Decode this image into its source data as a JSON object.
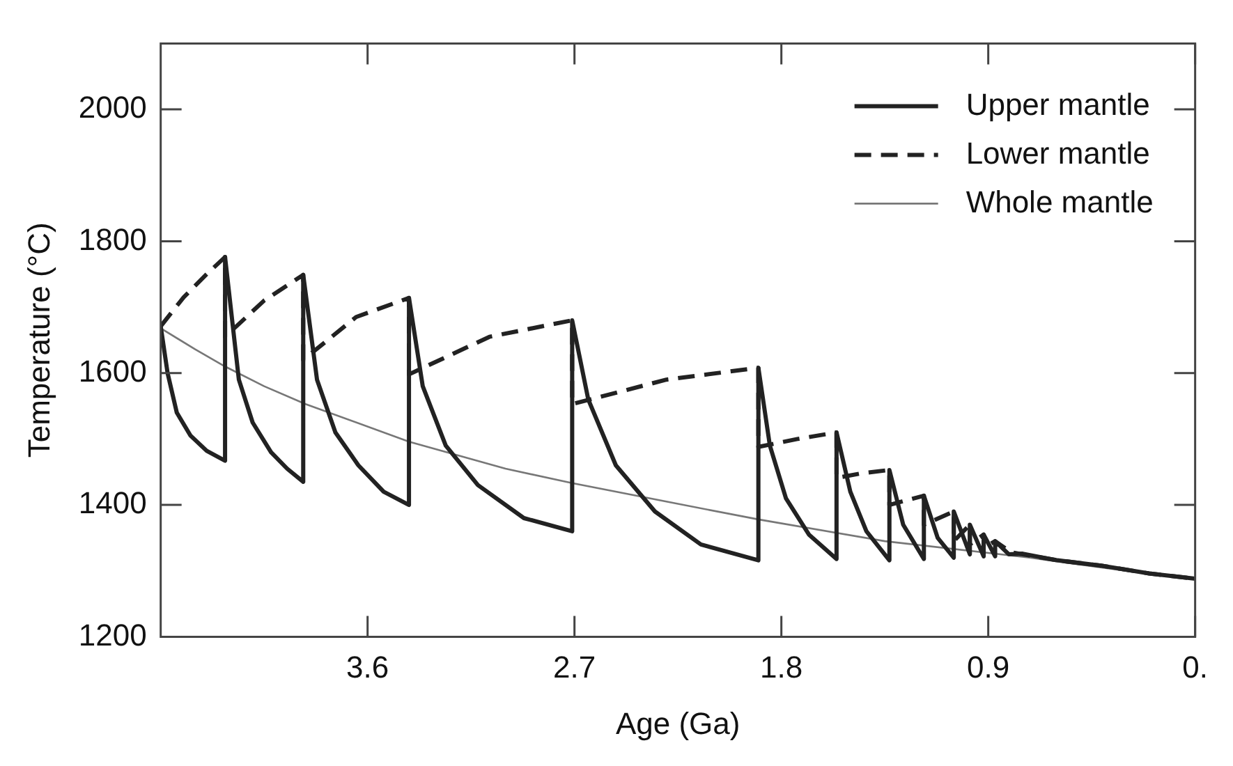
{
  "chart_data": {
    "type": "line",
    "xlabel": "Age (Ga)",
    "ylabel": "Temperature (°C)",
    "xlim": [
      4.5,
      0
    ],
    "ylim": [
      1200,
      2100
    ],
    "xticks": [
      3.6,
      2.7,
      1.8,
      0.9,
      {
        "value": 0,
        "label": "0."
      }
    ],
    "yticks": [
      1200,
      1400,
      1600,
      1800,
      2000
    ],
    "legend": "top right",
    "marker": "none",
    "series": [
      {
        "name": "Upper mantle",
        "color": "#222222",
        "line_style": "solid",
        "x": [
          4.5,
          4.47,
          4.43,
          4.37,
          4.3,
          4.22,
          4.22,
          4.16,
          4.1,
          4.02,
          3.95,
          3.88,
          3.88,
          3.82,
          3.74,
          3.64,
          3.53,
          3.42,
          3.42,
          3.36,
          3.26,
          3.12,
          2.92,
          2.71,
          2.71,
          2.64,
          2.52,
          2.35,
          2.15,
          1.9,
          1.9,
          1.85,
          1.78,
          1.68,
          1.56,
          1.56,
          1.5,
          1.43,
          1.33,
          1.33,
          1.27,
          1.18,
          1.18,
          1.12,
          1.05,
          1.05,
          0.98,
          0.98,
          0.92,
          0.92,
          0.87,
          0.87,
          0.81,
          0.75,
          0.6,
          0.41,
          0.2,
          0
        ],
        "values": [
          1671,
          1600,
          1540,
          1505,
          1482,
          1467,
          1776,
          1590,
          1525,
          1480,
          1455,
          1435,
          1749,
          1590,
          1510,
          1460,
          1420,
          1400,
          1714,
          1580,
          1490,
          1430,
          1380,
          1360,
          1680,
          1560,
          1460,
          1390,
          1340,
          1316,
          1608,
          1490,
          1410,
          1355,
          1318,
          1510,
          1420,
          1360,
          1316,
          1453,
          1370,
          1318,
          1414,
          1350,
          1320,
          1390,
          1325,
          1370,
          1322,
          1355,
          1322,
          1345,
          1325,
          1326,
          1316,
          1308,
          1296,
          1288
        ]
      },
      {
        "name": "Lower mantle",
        "color": "#222222",
        "line_style": "dashed",
        "x": [
          4.5,
          4.4,
          4.3,
          4.22,
          4.22,
          4.05,
          3.88,
          3.88,
          3.65,
          3.42,
          3.42,
          3.07,
          2.71,
          2.71,
          2.3,
          1.9,
          1.9,
          1.73,
          1.56,
          1.56,
          1.45,
          1.33,
          1.33,
          1.18,
          1.18,
          1.05,
          1.05,
          0.98,
          0.98,
          0.92,
          0.92,
          0.87,
          0.8,
          0.6,
          0.41,
          0.2,
          0
        ],
        "values": [
          1671,
          1715,
          1750,
          1776,
          1655,
          1710,
          1749,
          1620,
          1685,
          1714,
          1598,
          1655,
          1680,
          1553,
          1590,
          1608,
          1488,
          1500,
          1510,
          1441,
          1448,
          1453,
          1400,
          1414,
          1370,
          1390,
          1345,
          1370,
          1340,
          1355,
          1335,
          1345,
          1328,
          1316,
          1308,
          1296,
          1288
        ]
      },
      {
        "name": "Whole mantle",
        "color": "#777777",
        "line_style": "solid",
        "x": [
          4.5,
          4.35,
          4.22,
          4.05,
          3.87,
          3.42,
          3.0,
          2.71,
          2.3,
          1.9,
          1.35,
          0.72,
          0.3,
          0
        ],
        "values": [
          1668,
          1636,
          1610,
          1580,
          1553,
          1496,
          1455,
          1433,
          1405,
          1378,
          1345,
          1320,
          1300,
          1288
        ]
      }
    ]
  }
}
